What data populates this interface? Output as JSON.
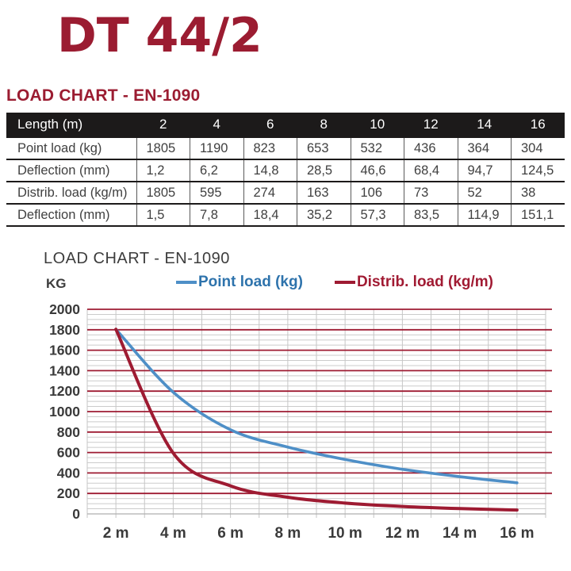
{
  "page": {
    "title": "DT 44/2",
    "section_heading": "LOAD CHART - EN-1090"
  },
  "table": {
    "header": [
      "Length (m)",
      "2",
      "4",
      "6",
      "8",
      "10",
      "12",
      "14",
      "16"
    ],
    "rows": [
      [
        "Point load (kg)",
        "1805",
        "1190",
        "823",
        "653",
        "532",
        "436",
        "364",
        "304"
      ],
      [
        "Deflection (mm)",
        "1,2",
        "6,2",
        "14,8",
        "28,5",
        "46,6",
        "68,4",
        "94,7",
        "124,5"
      ],
      [
        "Distrib. load (kg/m)",
        "1805",
        "595",
        "274",
        "163",
        "106",
        "73",
        "52",
        "38"
      ],
      [
        "Deflection (mm)",
        "1,5",
        "7,8",
        "18,4",
        "35,2",
        "57,3",
        "83,5",
        "114,9",
        "151,1"
      ]
    ]
  },
  "chart": {
    "title": "LOAD CHART - EN-1090",
    "y_axis_label": "KG",
    "legend": [
      {
        "label": "Point load (kg)",
        "line_color": "#4E8FC7",
        "text_color": "#2E73AC"
      },
      {
        "label": "Distrib. load (kg/m)",
        "line_color": "#9E1B32",
        "text_color": "#A11B33"
      }
    ]
  },
  "chart_data": {
    "type": "line",
    "title": "LOAD CHART - EN-1090",
    "ylabel": "KG",
    "x": [
      2,
      4,
      6,
      8,
      10,
      12,
      14,
      16
    ],
    "x_tick_labels": [
      "2 m",
      "4 m",
      "6 m",
      "8 m",
      "10 m",
      "12 m",
      "14 m",
      "16 m"
    ],
    "series": [
      {
        "name": "Point load (kg)",
        "color": "#4E8FC7",
        "values": [
          1805,
          1190,
          823,
          653,
          532,
          436,
          364,
          304
        ]
      },
      {
        "name": "Distrib. load (kg/m)",
        "color": "#9E1B32",
        "values": [
          1805,
          595,
          274,
          163,
          106,
          73,
          52,
          38
        ]
      }
    ],
    "ylim": [
      0,
      2000
    ],
    "y_major_step": 200,
    "y_minor_step": 50,
    "grid": true,
    "legend_position": "top"
  },
  "colors": {
    "brand_red": "#9B1C31",
    "grid_major_red": "#9E1B32",
    "grid_minor_gray": "#CBCBCB",
    "grid_vertical_gray": "#C6C6C6",
    "zero_line_gray": "#AFAFAF",
    "table_header_bg": "#1C1A1A",
    "text_dark": "#3A3A3A"
  }
}
